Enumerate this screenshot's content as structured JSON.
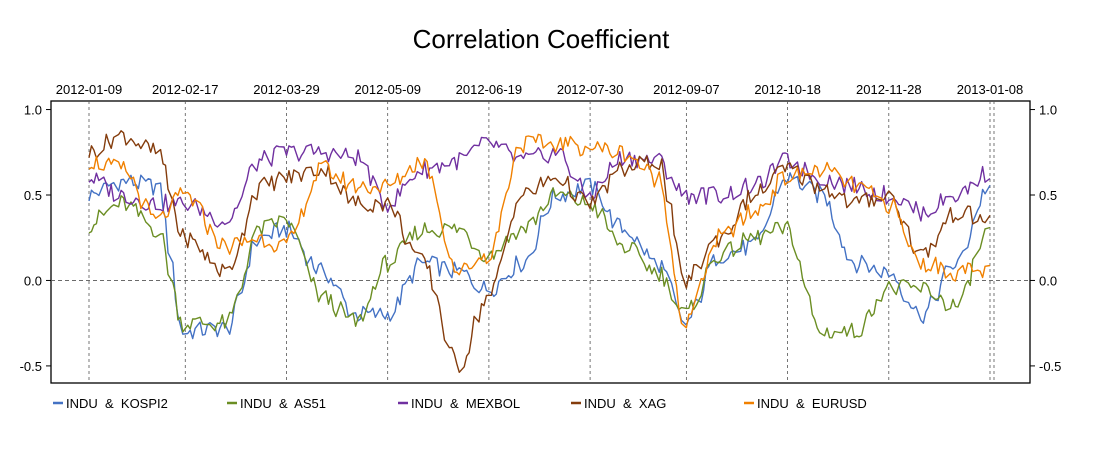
{
  "chart_data": {
    "type": "line",
    "title": "Correlation Coefficient",
    "xlabel": "",
    "ylabel": "",
    "x_ticks": [
      "2012-01-09",
      "2012-02-17",
      "2012-03-29",
      "2012-05-09",
      "2012-06-19",
      "2012-07-30",
      "2012-09-07",
      "2012-10-18",
      "2012-11-28",
      "2013-01-08"
    ],
    "x_range": [
      "2012-01-09",
      "2013-01-08"
    ],
    "y_ticks": [
      "1.0",
      "0.5",
      "0.0",
      "-0.5"
    ],
    "ylim": [
      -0.6,
      1.05
    ],
    "zero_line": true,
    "vertical_gridlines": true,
    "grid": "dashed vertical at x ticks, dashed horizontal at 0",
    "legend_position": "bottom",
    "x": [
      "2012-01-09",
      "2012-01-23",
      "2012-02-06",
      "2012-02-17",
      "2012-03-05",
      "2012-03-19",
      "2012-03-29",
      "2012-04-13",
      "2012-04-27",
      "2012-05-09",
      "2012-05-24",
      "2012-06-07",
      "2012-06-19",
      "2012-07-03",
      "2012-07-17",
      "2012-07-30",
      "2012-08-13",
      "2012-08-27",
      "2012-09-07",
      "2012-09-21",
      "2012-10-05",
      "2012-10-18",
      "2012-11-01",
      "2012-11-15",
      "2012-11-28",
      "2012-12-12",
      "2012-12-26",
      "2013-01-08"
    ],
    "series": [
      {
        "name": "INDU  &  KOSPI2",
        "color": "#4472C4",
        "values": [
          0.5,
          0.58,
          0.55,
          -0.3,
          -0.28,
          0.25,
          0.3,
          0.05,
          -0.2,
          -0.2,
          0.1,
          0.05,
          -0.05,
          0.1,
          0.5,
          0.55,
          0.3,
          0.1,
          -0.25,
          0.15,
          0.2,
          0.6,
          0.5,
          0.1,
          0.05,
          -0.2,
          0.1,
          0.55
        ]
      },
      {
        "name": "INDU  &  AS51",
        "color": "#6B8E23",
        "values": [
          0.33,
          0.45,
          0.3,
          -0.25,
          -0.25,
          0.3,
          0.35,
          -0.1,
          -0.25,
          0.1,
          0.3,
          0.3,
          0.15,
          0.3,
          0.5,
          0.45,
          0.2,
          0.05,
          -0.2,
          0.15,
          0.25,
          0.3,
          -0.3,
          -0.3,
          -0.05,
          -0.05,
          -0.15,
          0.28
        ]
      },
      {
        "name": "INDU  &  MEXBOL",
        "color": "#7030A0",
        "values": [
          0.6,
          0.5,
          0.45,
          0.45,
          0.35,
          0.7,
          0.75,
          0.75,
          0.72,
          0.45,
          0.65,
          0.7,
          0.8,
          0.7,
          0.75,
          0.5,
          0.72,
          0.7,
          0.5,
          0.5,
          0.55,
          0.7,
          0.6,
          0.55,
          0.5,
          0.4,
          0.5,
          0.63
        ]
      },
      {
        "name": "INDU  &  XAG",
        "color": "#843C0C",
        "values": [
          0.75,
          0.85,
          0.75,
          0.25,
          0.05,
          0.55,
          0.6,
          0.65,
          0.45,
          0.45,
          0.1,
          -0.5,
          -0.1,
          0.5,
          0.6,
          0.45,
          0.65,
          0.7,
          0.0,
          0.25,
          0.5,
          0.65,
          0.55,
          0.45,
          0.5,
          0.15,
          0.4,
          0.35
        ]
      },
      {
        "name": "INDU  &  EURUSD",
        "color": "#F08000",
        "values": [
          0.7,
          0.65,
          0.35,
          0.5,
          0.2,
          0.25,
          0.2,
          0.65,
          0.55,
          0.55,
          0.7,
          0.05,
          0.15,
          0.8,
          0.8,
          0.78,
          0.75,
          0.6,
          -0.25,
          0.25,
          0.4,
          0.6,
          0.65,
          0.55,
          0.45,
          0.1,
          0.05,
          0.05
        ]
      }
    ]
  }
}
